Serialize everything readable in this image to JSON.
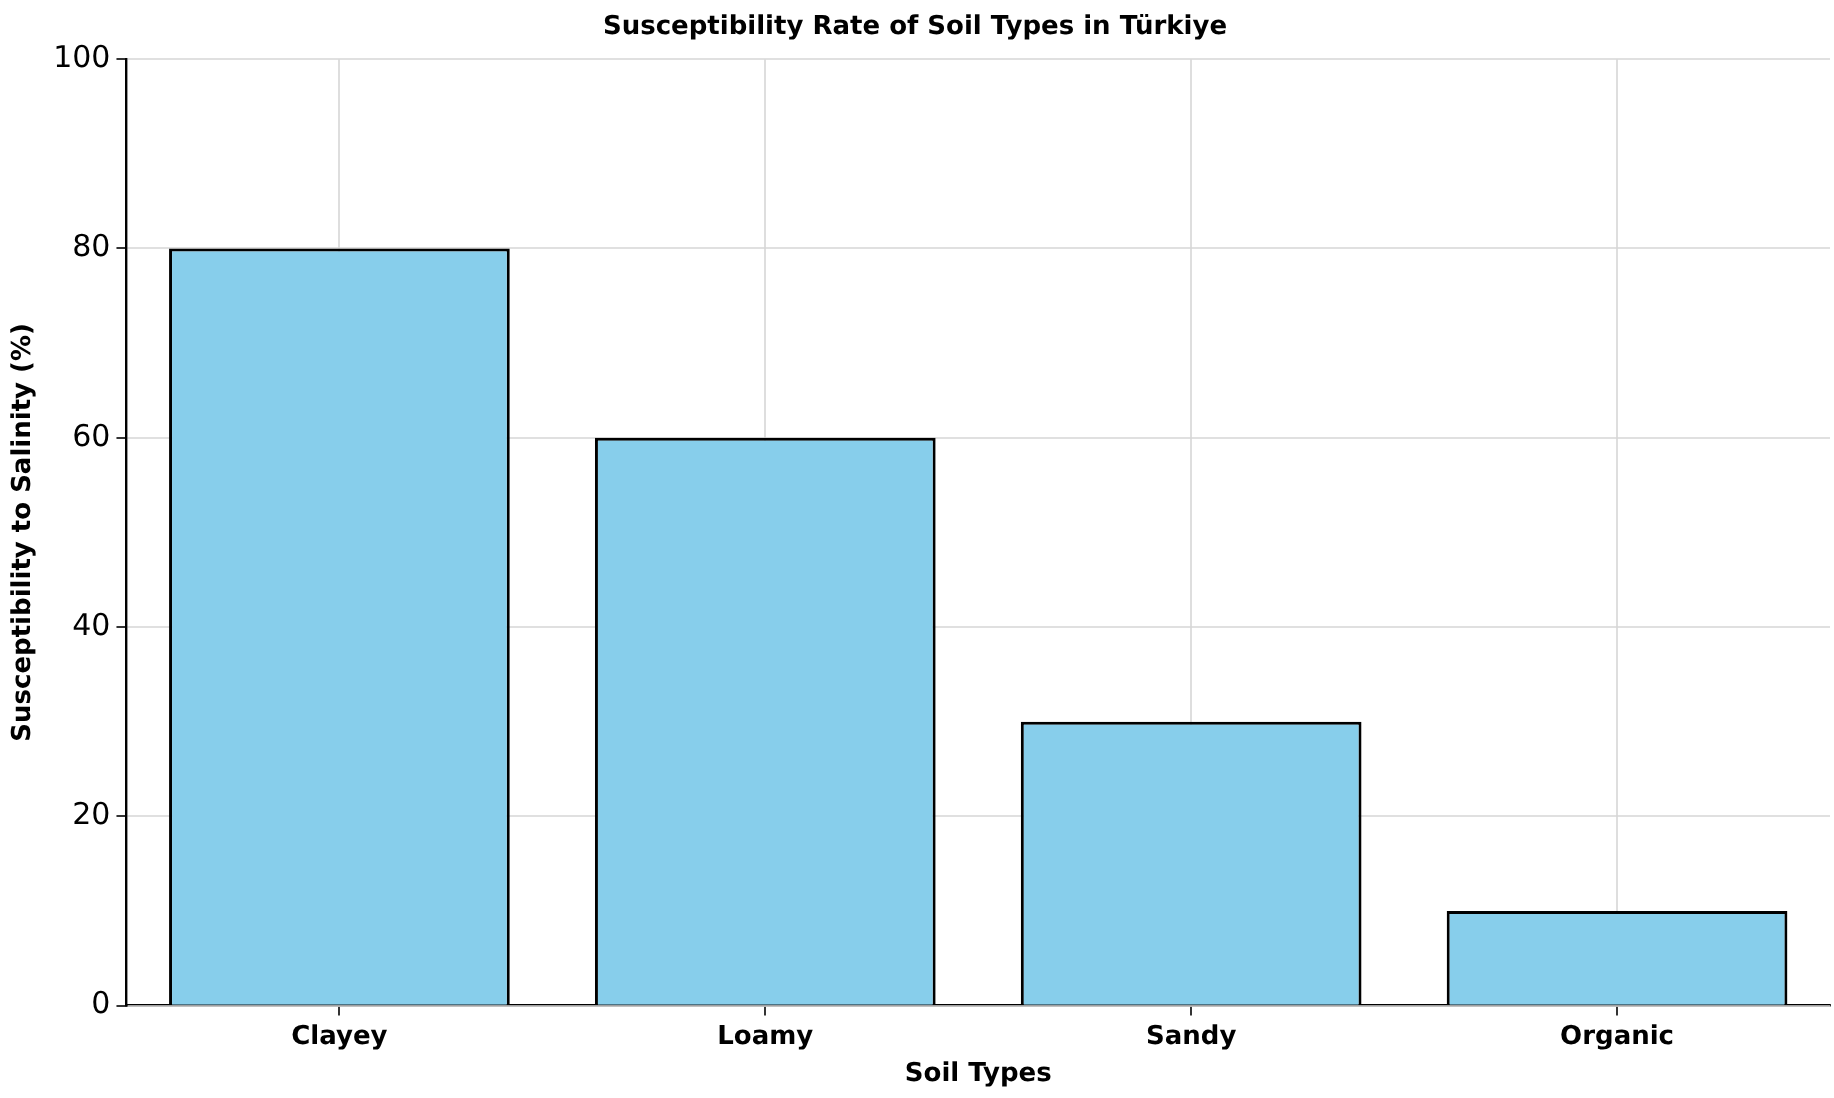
{
  "chart_data": {
    "type": "bar",
    "title": "Susceptibility Rate of Soil Types in Türkiye",
    "xlabel": "Soil Types",
    "ylabel": "Susceptibility to Salinity (%)",
    "categories": [
      "Clayey",
      "Loamy",
      "Sandy",
      "Organic"
    ],
    "values": [
      80,
      60,
      30,
      10
    ],
    "color": "#87ceeb",
    "ylim": [
      0,
      100
    ],
    "yticks": [
      0,
      20,
      40,
      60,
      80,
      100
    ],
    "grid": true
  }
}
